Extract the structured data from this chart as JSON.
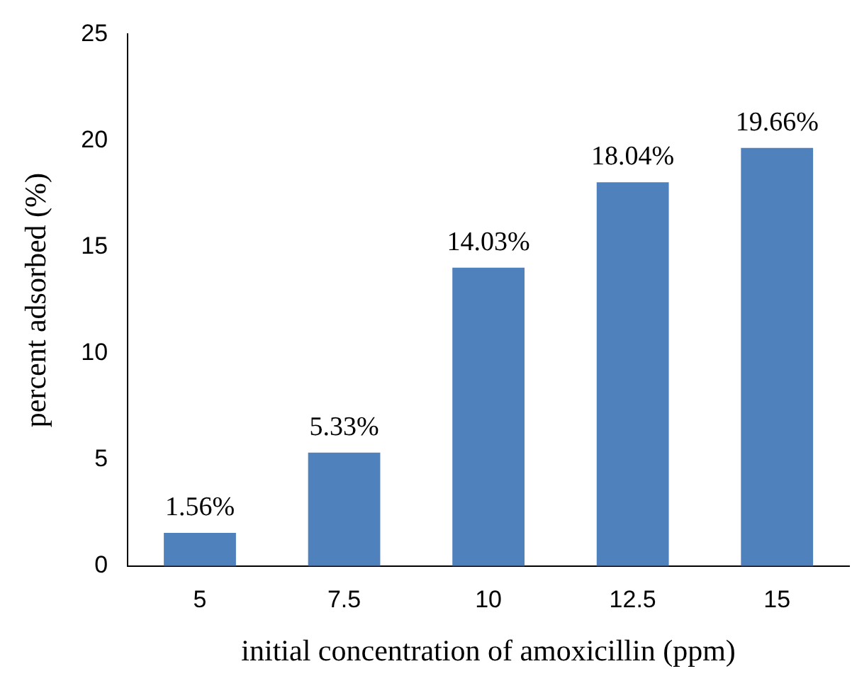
{
  "chart_data": {
    "type": "bar",
    "xlabel": "initial concentration of amoxicillin (ppm)",
    "ylabel": "percent adsorbed (%)",
    "categories": [
      "5",
      "7.5",
      "10",
      "12.5",
      "15"
    ],
    "values": [
      1.56,
      5.33,
      14.03,
      18.04,
      19.66
    ],
    "value_labels": [
      "1.56%",
      "5.33%",
      "14.03%",
      "18.04%",
      "19.66%"
    ],
    "color": "#4f81bd",
    "ylim": [
      0,
      25
    ],
    "yticks": [
      0,
      5,
      10,
      15,
      20,
      25
    ],
    "grid": false,
    "legend": false
  }
}
